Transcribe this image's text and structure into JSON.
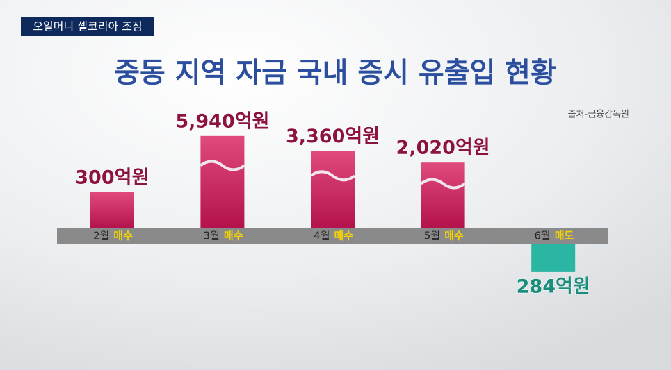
{
  "chart_data": {
    "type": "bar",
    "tag": "오일머니 셀코리아 조짐",
    "title": "중동 지역 자금 국내 증시 유출입 현황",
    "source": "출처-금융감독원",
    "categories": [
      "2월",
      "3월",
      "4월",
      "5월",
      "6월"
    ],
    "actions": [
      "매수",
      "매수",
      "매수",
      "매수",
      "매도"
    ],
    "values": [
      300,
      5940,
      3360,
      2020,
      -284
    ],
    "value_labels": [
      "300억원",
      "5,940억원",
      "3,360억원",
      "2,020억원",
      "284억원"
    ],
    "colors": {
      "positive": "#c41a5a",
      "negative": "#2bb5a3"
    }
  }
}
